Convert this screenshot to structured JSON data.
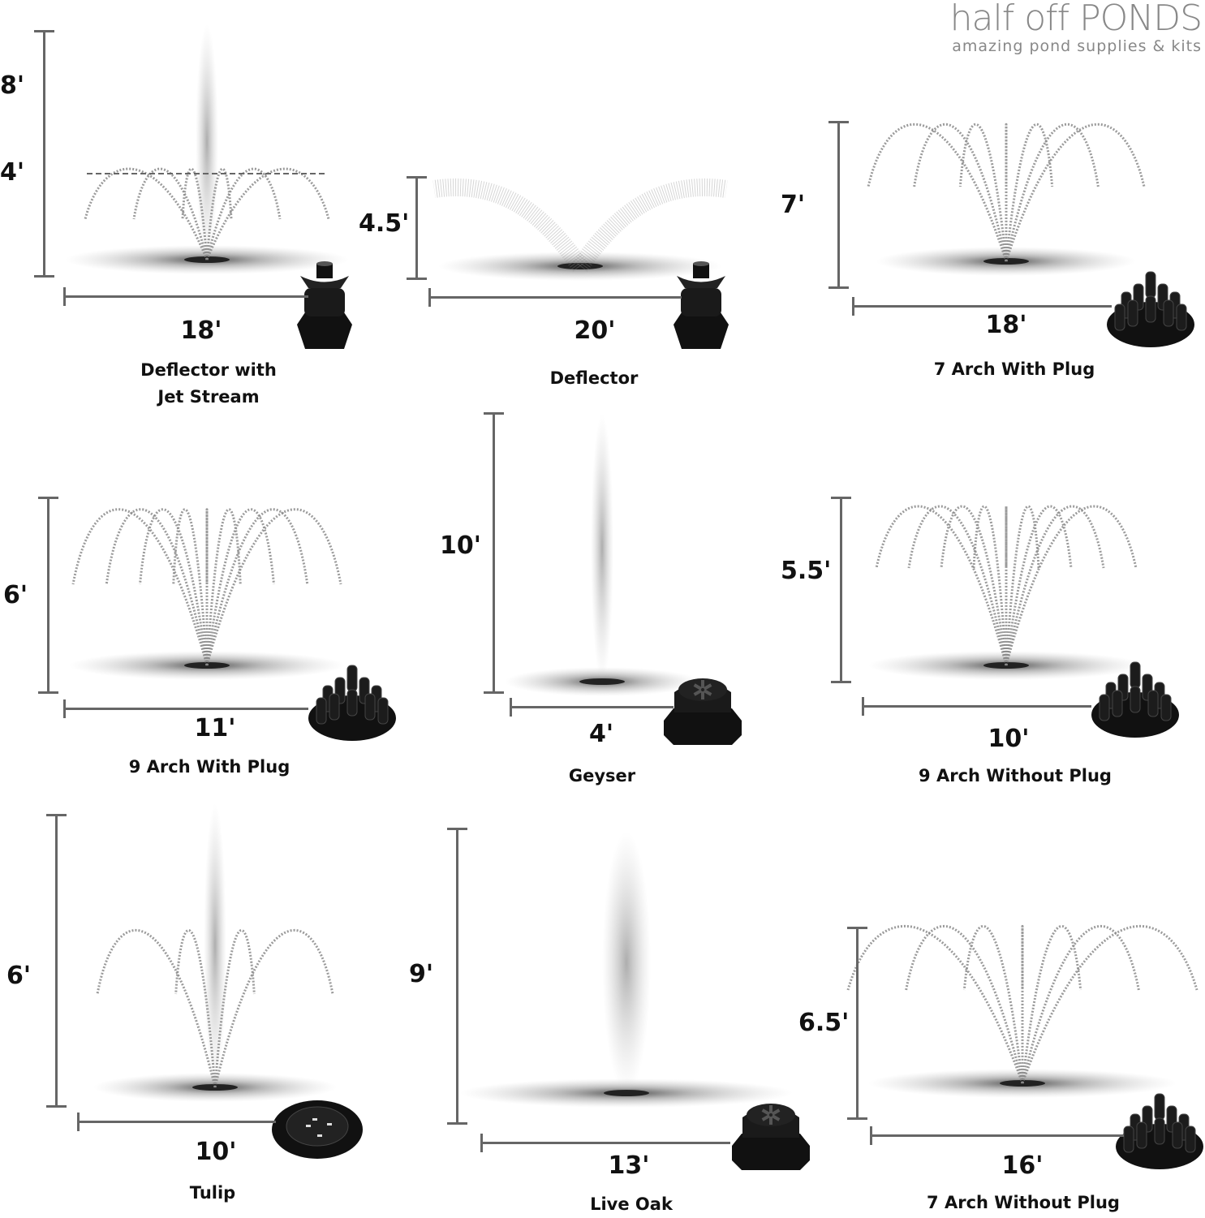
{
  "logo": {
    "brand": "half off PONDS",
    "tagline": "amazing pond supplies & kits"
  },
  "colors": {
    "text": "#111111",
    "dimension_bar": "#666666",
    "spray": "#8a8a8a",
    "nozzle": "#111111",
    "logo": "#888888"
  },
  "fountains": [
    {
      "name": "Deflector with Jet Stream",
      "name_lines": [
        "Deflector with",
        "Jet Stream"
      ],
      "height": "8'",
      "secondary_height": "4'",
      "width": "18'",
      "nozzle_icon": "deflector-nozzle-icon"
    },
    {
      "name": "Deflector",
      "name_lines": [
        "Deflector"
      ],
      "height": "4.5'",
      "width": "20'",
      "nozzle_icon": "deflector-nozzle-icon"
    },
    {
      "name": "7 Arch With Plug",
      "name_lines": [
        "7 Arch With Plug"
      ],
      "height": "7'",
      "width": "18'",
      "nozzle_icon": "arch-plug-nozzle-icon"
    },
    {
      "name": "9 Arch With Plug",
      "name_lines": [
        "9 Arch With Plug"
      ],
      "height": "6'",
      "width": "11'",
      "nozzle_icon": "arch-plug-nozzle-icon"
    },
    {
      "name": "Geyser",
      "name_lines": [
        "Geyser"
      ],
      "height": "10'",
      "width": "4'",
      "nozzle_icon": "geyser-nozzle-icon"
    },
    {
      "name": "9 Arch Without Plug",
      "name_lines": [
        "9 Arch Without Plug"
      ],
      "height": "5.5'",
      "width": "10'",
      "nozzle_icon": "arch-nozzle-icon"
    },
    {
      "name": "Tulip",
      "name_lines": [
        "Tulip"
      ],
      "height": "6'",
      "width": "10'",
      "nozzle_icon": "tulip-nozzle-icon"
    },
    {
      "name": "Live Oak",
      "name_lines": [
        "Live Oak"
      ],
      "height": "9'",
      "width": "13'",
      "nozzle_icon": "live-oak-nozzle-icon"
    },
    {
      "name": "7 Arch Without Plug",
      "name_lines": [
        "7 Arch Without Plug"
      ],
      "height": "6.5'",
      "width": "16'",
      "nozzle_icon": "arch-nozzle-icon"
    }
  ]
}
